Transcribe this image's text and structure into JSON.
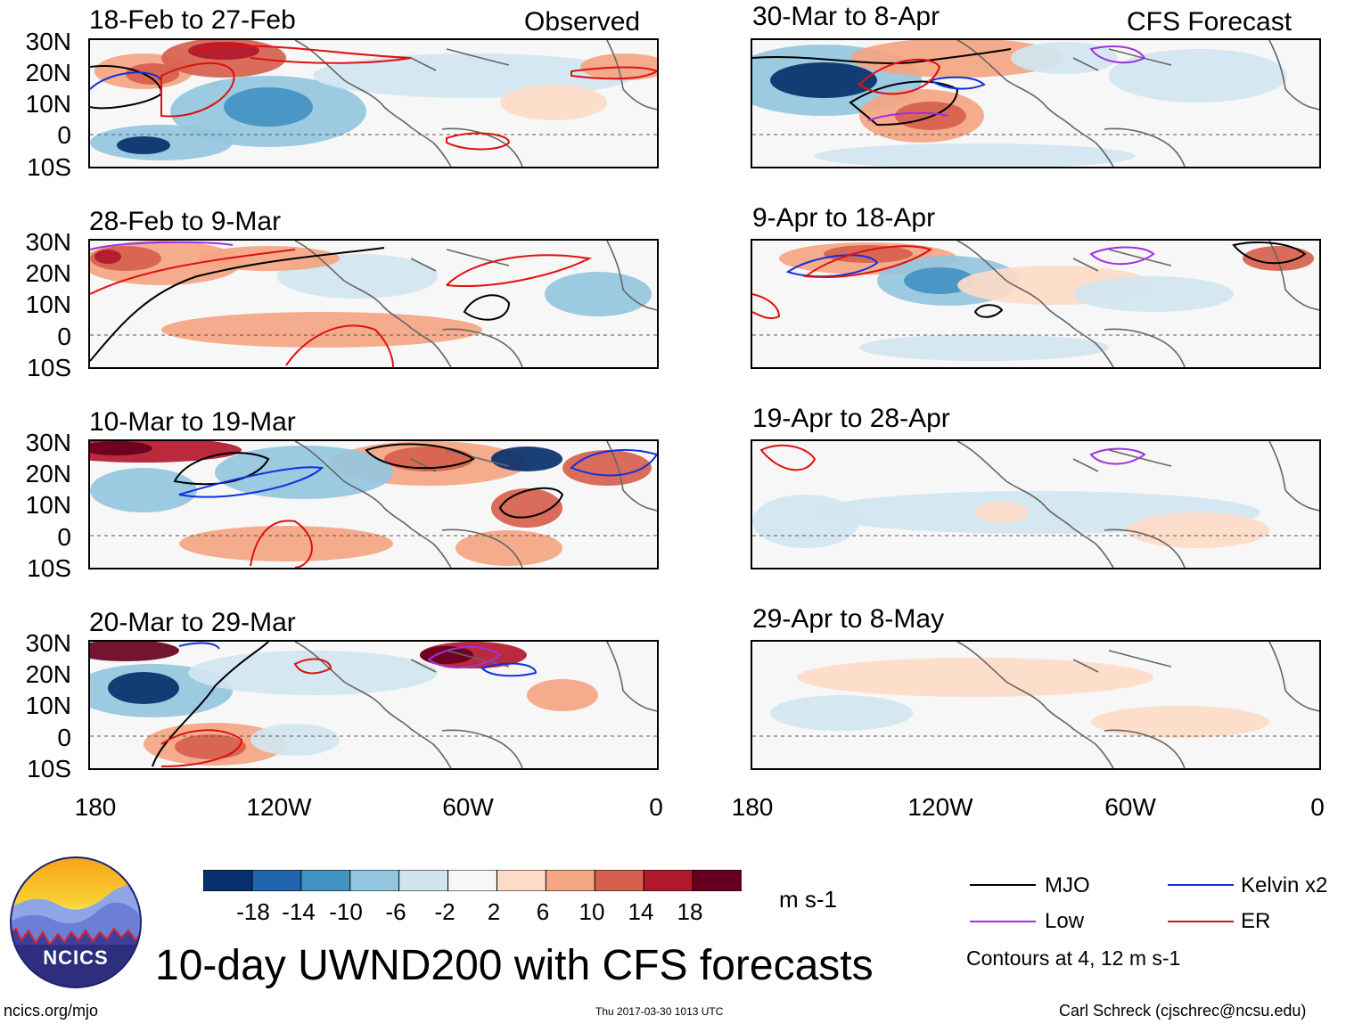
{
  "title": "10-day UWND200 with CFS forecasts",
  "column_headers": {
    "observed": "Observed",
    "forecast": "CFS Forecast"
  },
  "panels_left": [
    {
      "label": "18-Feb to 27-Feb"
    },
    {
      "label": "28-Feb to 9-Mar"
    },
    {
      "label": "10-Mar to 19-Mar"
    },
    {
      "label": "20-Mar to 29-Mar"
    }
  ],
  "panels_right": [
    {
      "label": "30-Mar to 8-Apr"
    },
    {
      "label": "9-Apr to 18-Apr"
    },
    {
      "label": "19-Apr to 28-Apr"
    },
    {
      "label": "29-Apr to 8-May"
    }
  ],
  "lat_ticks": [
    "30N",
    "20N",
    "10N",
    "0",
    "10S"
  ],
  "lon_ticks": [
    "180",
    "120W",
    "60W",
    "0"
  ],
  "colorbar": {
    "labels": [
      "-18",
      "-14",
      "-10",
      "-6",
      "-2",
      "2",
      "6",
      "10",
      "14",
      "18"
    ],
    "colors": [
      "#08306b",
      "#2166ac",
      "#4393c3",
      "#92c5de",
      "#d1e5f0",
      "#f7f7f7",
      "#fddbc7",
      "#f4a582",
      "#d6604d",
      "#b2182b",
      "#67001f"
    ],
    "units": "m s-1"
  },
  "legend": {
    "items": [
      {
        "label": "MJO",
        "color": "#000000"
      },
      {
        "label": "Kelvin x2",
        "color": "#1030e0"
      },
      {
        "label": "Low",
        "color": "#a030e0"
      },
      {
        "label": "ER",
        "color": "#e01010"
      }
    ],
    "note": "Contours at 4, 12 m s-1"
  },
  "logo": {
    "text": "NCICS"
  },
  "footer": {
    "url": "ncics.org/mjo",
    "timestamp": "Thu 2017-03-30 1013 UTC",
    "credit": "Carl Schreck (cjschrec@ncsu.edu)"
  }
}
